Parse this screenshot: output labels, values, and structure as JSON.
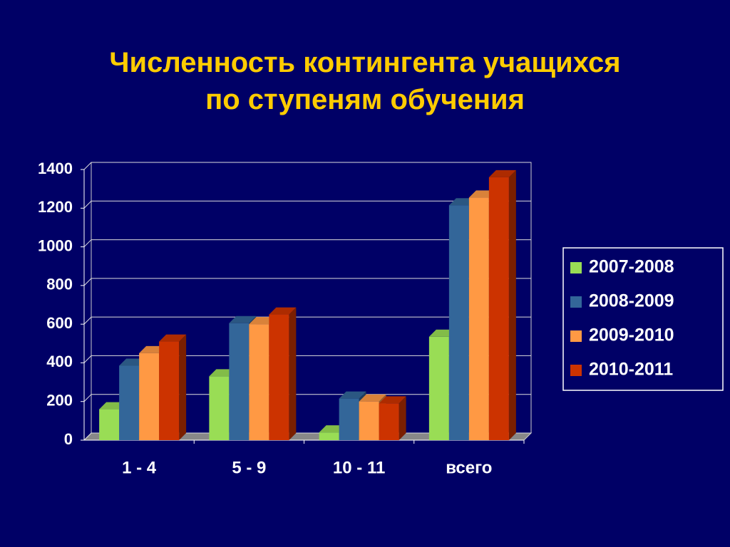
{
  "chart_data": {
    "type": "bar",
    "title": "Численность контингента учащихся по ступеням обучения",
    "categories": [
      "1 - 4",
      "5 - 9",
      "10 - 11",
      "всего"
    ],
    "series": [
      {
        "name": "2007-2008",
        "color": "#99dd55",
        "values": [
          160,
          330,
          40,
          535
        ]
      },
      {
        "name": "2008-2009",
        "color": "#336699",
        "values": [
          385,
          605,
          215,
          1215
        ]
      },
      {
        "name": "2009-2010",
        "color": "#ff9944",
        "values": [
          450,
          600,
          200,
          1255
        ]
      },
      {
        "name": "2010-2011",
        "color": "#cc3300",
        "values": [
          510,
          650,
          190,
          1360
        ]
      }
    ],
    "ylim": [
      0,
      1400
    ],
    "yticks": [
      0,
      200,
      400,
      600,
      800,
      1000,
      1200,
      1400
    ],
    "grid": true,
    "legend": "right"
  }
}
